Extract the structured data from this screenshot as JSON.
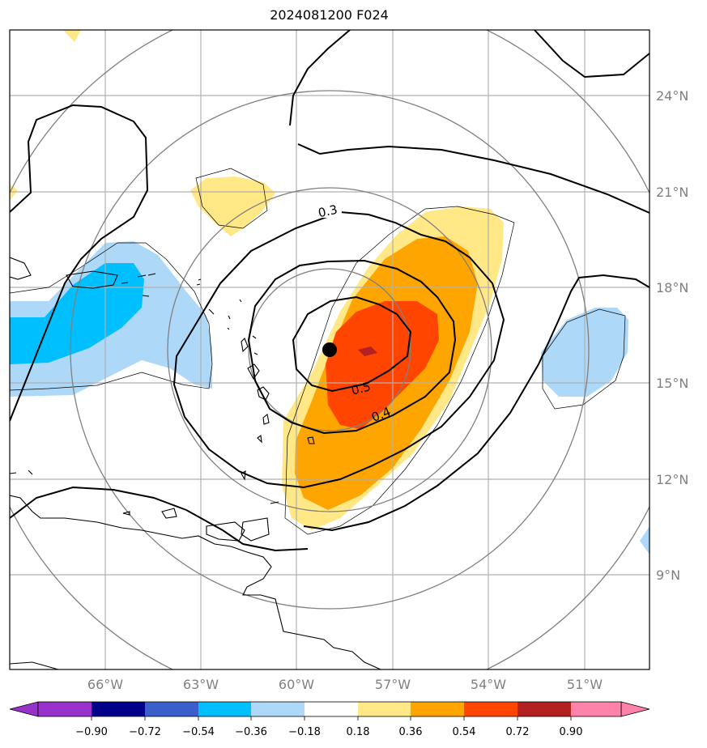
{
  "title": "2024081200 F024",
  "map": {
    "lon_labels": [
      "66°W",
      "63°W",
      "60°W",
      "57°W",
      "54°W",
      "51°W"
    ],
    "lat_labels": [
      "24°N",
      "21°N",
      "18°N",
      "15°N",
      "12°N",
      "9°N"
    ],
    "contour_labels": [
      "0.3",
      "0.4",
      "0.5"
    ],
    "center_marker": "storm-center-dot"
  },
  "colorbar": {
    "ticks": [
      "−0.90",
      "−0.72",
      "−0.54",
      "−0.36",
      "−0.18",
      "0.18",
      "0.36",
      "0.54",
      "0.72",
      "0.90"
    ],
    "colors": [
      "#9932cc",
      "#00008b",
      "#3a5fcd",
      "#00bfff",
      "#add8f7",
      "#ffffff",
      "#ffe885",
      "#ffa500",
      "#ff4500",
      "#b22222",
      "#ff82ab"
    ]
  }
}
